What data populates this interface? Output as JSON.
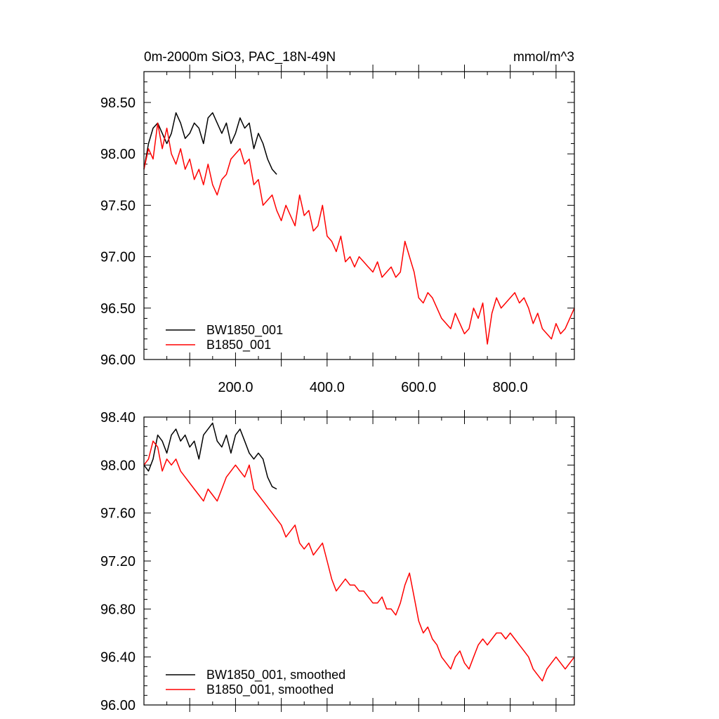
{
  "colors": {
    "bw": "#000000",
    "b": "#ff0000",
    "frame": "#000000"
  },
  "chart_data": [
    {
      "type": "line",
      "title": "0m-2000m SiO3, PAC_18N-49N",
      "units": "mmol/m^3",
      "xlim": [
        0,
        940
      ],
      "ylim": [
        96.0,
        98.8
      ],
      "xticks": [
        200,
        400,
        600,
        800
      ],
      "xtick_labels": [
        "200.0",
        "400.0",
        "600.0",
        "800.0"
      ],
      "yticks": [
        96.0,
        96.5,
        97.0,
        97.5,
        98.0,
        98.5
      ],
      "ytick_labels": [
        "96.00",
        "96.50",
        "97.00",
        "97.50",
        "98.00",
        "98.50"
      ],
      "legend_position": "bottom-left",
      "series": [
        {
          "name": "BW1850_001",
          "color": "#000000",
          "x": [
            0,
            10,
            20,
            30,
            40,
            50,
            60,
            70,
            80,
            90,
            100,
            110,
            120,
            130,
            140,
            150,
            160,
            170,
            180,
            190,
            200,
            210,
            220,
            230,
            240,
            250,
            260,
            270,
            280,
            290
          ],
          "y": [
            97.85,
            98.1,
            98.25,
            98.3,
            98.2,
            98.1,
            98.2,
            98.4,
            98.3,
            98.15,
            98.2,
            98.3,
            98.25,
            98.1,
            98.35,
            98.4,
            98.3,
            98.2,
            98.3,
            98.1,
            98.2,
            98.35,
            98.25,
            98.3,
            98.05,
            98.2,
            98.1,
            97.95,
            97.85,
            97.8
          ]
        },
        {
          "name": "B1850_001",
          "color": "#ff0000",
          "x": [
            0,
            10,
            20,
            30,
            40,
            50,
            60,
            70,
            80,
            90,
            100,
            110,
            120,
            130,
            140,
            150,
            160,
            170,
            180,
            190,
            200,
            210,
            220,
            230,
            240,
            250,
            260,
            270,
            280,
            290,
            300,
            310,
            320,
            330,
            340,
            350,
            360,
            370,
            380,
            390,
            400,
            410,
            420,
            430,
            440,
            450,
            460,
            470,
            480,
            490,
            500,
            510,
            520,
            530,
            540,
            550,
            560,
            570,
            580,
            590,
            600,
            610,
            620,
            630,
            640,
            650,
            660,
            670,
            680,
            690,
            700,
            710,
            720,
            730,
            740,
            750,
            760,
            770,
            780,
            790,
            800,
            810,
            820,
            830,
            840,
            850,
            860,
            870,
            880,
            890,
            900,
            910,
            920,
            930,
            940
          ],
          "y": [
            97.85,
            98.05,
            97.95,
            98.3,
            98.05,
            98.25,
            98.0,
            97.9,
            98.05,
            97.85,
            97.95,
            97.75,
            97.85,
            97.7,
            97.9,
            97.7,
            97.6,
            97.75,
            97.8,
            97.95,
            98.0,
            98.05,
            97.9,
            97.95,
            97.7,
            97.75,
            97.5,
            97.55,
            97.6,
            97.45,
            97.35,
            97.5,
            97.4,
            97.3,
            97.6,
            97.4,
            97.45,
            97.25,
            97.3,
            97.5,
            97.2,
            97.15,
            97.05,
            97.2,
            96.95,
            97.0,
            96.9,
            97.0,
            96.95,
            96.9,
            96.85,
            96.95,
            96.8,
            96.85,
            96.9,
            96.8,
            96.85,
            97.15,
            97.0,
            96.85,
            96.6,
            96.55,
            96.65,
            96.6,
            96.5,
            96.4,
            96.35,
            96.3,
            96.45,
            96.35,
            96.25,
            96.3,
            96.5,
            96.4,
            96.55,
            96.15,
            96.45,
            96.6,
            96.5,
            96.55,
            96.6,
            96.65,
            96.55,
            96.6,
            96.5,
            96.35,
            96.45,
            96.3,
            96.25,
            96.2,
            96.35,
            96.25,
            96.3,
            96.4,
            96.5
          ]
        }
      ]
    },
    {
      "type": "line",
      "xlim": [
        0,
        940
      ],
      "ylim": [
        96.0,
        98.4
      ],
      "yticks": [
        96.0,
        96.4,
        96.8,
        97.2,
        97.6,
        98.0,
        98.4
      ],
      "ytick_labels": [
        "96.00",
        "96.40",
        "96.80",
        "97.20",
        "97.60",
        "98.00",
        "98.40"
      ],
      "legend_position": "bottom-left",
      "series": [
        {
          "name": "BW1850_001, smoothed",
          "color": "#000000",
          "x": [
            0,
            10,
            20,
            30,
            40,
            50,
            60,
            70,
            80,
            90,
            100,
            110,
            120,
            130,
            140,
            150,
            160,
            170,
            180,
            190,
            200,
            210,
            220,
            230,
            240,
            250,
            260,
            270,
            280,
            290
          ],
          "y": [
            98.0,
            97.95,
            98.05,
            98.25,
            98.2,
            98.1,
            98.25,
            98.3,
            98.2,
            98.25,
            98.15,
            98.2,
            98.05,
            98.25,
            98.3,
            98.35,
            98.2,
            98.15,
            98.25,
            98.1,
            98.25,
            98.3,
            98.2,
            98.1,
            98.05,
            98.1,
            98.05,
            97.9,
            97.82,
            97.8
          ]
        },
        {
          "name": "B1850_001, smoothed",
          "color": "#ff0000",
          "x": [
            0,
            10,
            20,
            30,
            40,
            50,
            60,
            70,
            80,
            90,
            100,
            110,
            120,
            130,
            140,
            150,
            160,
            170,
            180,
            190,
            200,
            210,
            220,
            230,
            240,
            250,
            260,
            270,
            280,
            290,
            300,
            310,
            320,
            330,
            340,
            350,
            360,
            370,
            380,
            390,
            400,
            410,
            420,
            430,
            440,
            450,
            460,
            470,
            480,
            490,
            500,
            510,
            520,
            530,
            540,
            550,
            560,
            570,
            580,
            590,
            600,
            610,
            620,
            630,
            640,
            650,
            660,
            670,
            680,
            690,
            700,
            710,
            720,
            730,
            740,
            750,
            760,
            770,
            780,
            790,
            800,
            810,
            820,
            830,
            840,
            850,
            860,
            870,
            880,
            890,
            900,
            910,
            920,
            930,
            940
          ],
          "y": [
            98.0,
            98.05,
            98.2,
            98.15,
            97.95,
            98.05,
            98.0,
            98.05,
            97.95,
            97.9,
            97.85,
            97.8,
            97.75,
            97.7,
            97.8,
            97.75,
            97.7,
            97.8,
            97.9,
            97.95,
            98.0,
            97.95,
            97.9,
            98.0,
            97.8,
            97.75,
            97.7,
            97.65,
            97.6,
            97.55,
            97.5,
            97.4,
            97.45,
            97.5,
            97.35,
            97.3,
            97.35,
            97.25,
            97.3,
            97.35,
            97.2,
            97.05,
            96.95,
            97.0,
            97.05,
            97.0,
            97.0,
            96.95,
            96.95,
            96.9,
            96.85,
            96.85,
            96.9,
            96.8,
            96.8,
            96.75,
            96.85,
            97.0,
            97.1,
            96.9,
            96.7,
            96.6,
            96.65,
            96.55,
            96.5,
            96.4,
            96.35,
            96.3,
            96.4,
            96.45,
            96.35,
            96.3,
            96.4,
            96.5,
            96.55,
            96.5,
            96.55,
            96.6,
            96.6,
            96.55,
            96.6,
            96.55,
            96.5,
            96.45,
            96.4,
            96.3,
            96.25,
            96.2,
            96.3,
            96.35,
            96.4,
            96.35,
            96.3,
            96.35,
            96.4
          ]
        }
      ]
    }
  ]
}
